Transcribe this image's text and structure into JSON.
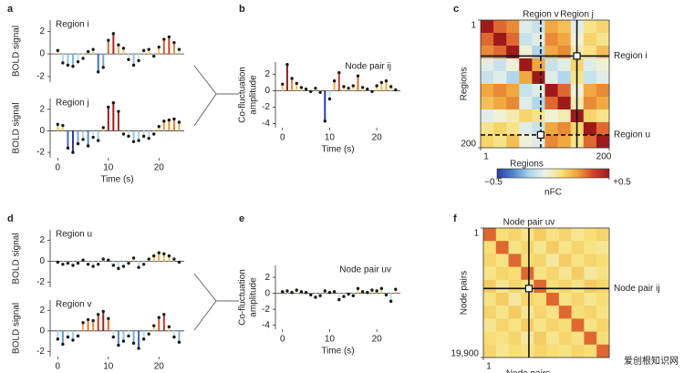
{
  "watermark": "爱创根知识网",
  "colormap": [
    "#2a3d9c",
    "#4f86cc",
    "#a9d4ec",
    "#eef2e6",
    "#f8e27a",
    "#f0a23a",
    "#d4422a",
    "#9e1a1a"
  ],
  "chart_data": [
    {
      "type": "stem",
      "label": "a",
      "title": "Region i",
      "ylabel": [
        "BOLD signal"
      ],
      "x": [
        0,
        1,
        2,
        3,
        4,
        5,
        6,
        7,
        8,
        9,
        10,
        11,
        12,
        13,
        14,
        15,
        16,
        17,
        18,
        19,
        20,
        21,
        22,
        23,
        24
      ],
      "values": [
        0.3,
        -0.8,
        -1.0,
        -1.1,
        -0.7,
        -0.4,
        0.2,
        0.4,
        -1.6,
        -1.2,
        1.2,
        1.8,
        0.8,
        0.5,
        -0.5,
        -1.0,
        -0.6,
        0.3,
        0.4,
        -0.2,
        0.6,
        1.3,
        1.5,
        1.0,
        0.4
      ],
      "xlim": [
        -1.5,
        25
      ],
      "ylim": [
        -2.5,
        3
      ],
      "yticks": [
        -2,
        0,
        2
      ],
      "clim": [
        -2,
        2
      ]
    },
    {
      "type": "stem",
      "title": "Region j",
      "ylabel": [
        "BOLD signal"
      ],
      "xlabel": "Time (s)",
      "x": [
        0,
        1,
        2,
        3,
        4,
        5,
        6,
        7,
        8,
        9,
        10,
        11,
        12,
        13,
        14,
        15,
        16,
        17,
        18,
        19,
        20,
        21,
        22,
        23,
        24
      ],
      "values": [
        0.6,
        0.5,
        -1.6,
        -2.0,
        -1.2,
        -0.8,
        -1.4,
        -0.6,
        -0.9,
        0.3,
        2.2,
        2.6,
        1.8,
        -0.3,
        -0.5,
        -1.0,
        -0.9,
        -0.5,
        -0.7,
        -0.3,
        0.4,
        0.9,
        1.0,
        1.1,
        0.8
      ],
      "xlim": [
        -1.5,
        25
      ],
      "ylim": [
        -2.5,
        3
      ],
      "xticks": [
        0,
        10,
        20
      ],
      "yticks": [
        -2,
        0,
        2
      ],
      "clim": [
        -2,
        2
      ]
    },
    {
      "type": "stem",
      "label": "b",
      "title": "Node pair ij",
      "ylabel": [
        "Co-fluctuation",
        "amplitude"
      ],
      "xlabel": "Time (s)",
      "x": [
        0,
        1,
        2,
        3,
        4,
        5,
        6,
        7,
        8,
        9,
        10,
        11,
        12,
        13,
        14,
        15,
        16,
        17,
        18,
        19,
        20,
        21,
        22,
        23,
        24
      ],
      "values": [
        0.8,
        3.2,
        1.5,
        0.9,
        0.4,
        0.2,
        -0.1,
        0.3,
        -0.2,
        -3.7,
        -1.0,
        1.2,
        2.2,
        0.5,
        0.3,
        0.6,
        1.8,
        0.4,
        0.2,
        -0.1,
        0.6,
        1.0,
        1.2,
        0.5,
        0.1
      ],
      "xlim": [
        -1.5,
        25
      ],
      "ylim": [
        -4.5,
        3.5
      ],
      "xticks": [
        0,
        10,
        20
      ],
      "yticks": [
        -4,
        -2,
        0,
        2
      ],
      "clim": [
        -3,
        3
      ]
    },
    {
      "type": "heatmap",
      "label": "c",
      "xlabel": "Regions",
      "ylabel": "Regions",
      "xlim": [
        1,
        200
      ],
      "ylim": [
        1,
        200
      ],
      "xticks": [
        1,
        200
      ],
      "yticks": [
        1,
        200
      ],
      "clim": [
        -0.5,
        0.5
      ],
      "matrix": [
        [
          0.5,
          0.3,
          0.25,
          -0.1,
          -0.15,
          0.2,
          0.15,
          -0.1,
          0.05,
          0.1
        ],
        [
          0.3,
          0.5,
          0.3,
          -0.15,
          -0.1,
          0.25,
          0.2,
          -0.05,
          0.1,
          0.05
        ],
        [
          0.25,
          0.3,
          0.5,
          -0.05,
          -0.2,
          0.2,
          0.25,
          0.0,
          0.05,
          0.15
        ],
        [
          -0.1,
          -0.15,
          -0.05,
          0.5,
          0.2,
          -0.15,
          -0.1,
          0.1,
          -0.1,
          -0.05
        ],
        [
          -0.15,
          -0.1,
          -0.2,
          0.2,
          0.5,
          -0.1,
          -0.2,
          0.05,
          -0.15,
          -0.1
        ],
        [
          0.2,
          0.25,
          0.2,
          -0.15,
          -0.1,
          0.5,
          0.3,
          -0.05,
          0.2,
          0.25
        ],
        [
          0.15,
          0.2,
          0.25,
          -0.1,
          -0.2,
          0.3,
          0.5,
          0.0,
          0.25,
          0.2
        ],
        [
          -0.1,
          -0.05,
          0.0,
          0.1,
          0.05,
          -0.05,
          0.0,
          0.5,
          0.1,
          0.05
        ],
        [
          0.05,
          0.1,
          0.05,
          -0.1,
          -0.15,
          0.2,
          0.25,
          0.1,
          0.5,
          0.3
        ],
        [
          0.1,
          0.05,
          0.15,
          -0.05,
          -0.1,
          0.25,
          0.2,
          0.05,
          0.3,
          0.5
        ]
      ],
      "highlights": [
        {
          "label": "Region i",
          "axis": "y",
          "value": 57,
          "style": "solid"
        },
        {
          "label": "Region j",
          "axis": "x",
          "value": 150,
          "style": "solid"
        },
        {
          "label": "Region v",
          "axis": "x",
          "value": 94,
          "style": "dashed"
        },
        {
          "label": "Region u",
          "axis": "y",
          "value": 180,
          "style": "dashed"
        }
      ],
      "colorbar": {
        "label": "nFC",
        "ticks": [
          {
            "value": -0.5,
            "label": "−0.5"
          },
          {
            "value": 0.5,
            "label": "+0.5"
          }
        ]
      }
    },
    {
      "type": "stem",
      "label": "d",
      "title": "Region u",
      "ylabel": [
        "BOLD signal"
      ],
      "x": [
        0,
        1,
        2,
        3,
        4,
        5,
        6,
        7,
        8,
        9,
        10,
        11,
        12,
        13,
        14,
        15,
        16,
        17,
        18,
        19,
        20,
        21,
        22,
        23,
        24
      ],
      "values": [
        -0.1,
        -0.3,
        -0.2,
        -0.4,
        -0.2,
        0.1,
        -0.3,
        -0.5,
        -0.3,
        0.2,
        0.1,
        -0.4,
        -0.7,
        -0.5,
        -0.2,
        0.3,
        -0.6,
        -0.3,
        0.2,
        0.5,
        0.8,
        0.7,
        0.5,
        0.2,
        -0.1
      ],
      "xlim": [
        -1.5,
        25
      ],
      "ylim": [
        -2.5,
        3
      ],
      "yticks": [
        -2,
        0,
        2
      ],
      "clim": [
        -2,
        2
      ]
    },
    {
      "type": "stem",
      "title": "Region v",
      "ylabel": [
        "BOLD signal"
      ],
      "x": [
        0,
        1,
        2,
        3,
        4,
        5,
        6,
        7,
        8,
        9,
        10,
        11,
        12,
        13,
        14,
        15,
        16,
        17,
        18,
        19,
        20,
        21,
        22,
        23,
        24
      ],
      "values": [
        -0.8,
        -1.3,
        -0.6,
        -0.9,
        -0.5,
        0.8,
        1.1,
        1.0,
        1.6,
        1.9,
        1.2,
        -0.6,
        -1.4,
        -1.0,
        -0.5,
        -1.2,
        -1.7,
        -0.8,
        -0.3,
        0.5,
        1.3,
        1.6,
        0.4,
        -0.6,
        -1.1
      ],
      "xlim": [
        -1.5,
        25
      ],
      "ylim": [
        -2.5,
        3
      ],
      "xticks": [
        0,
        10,
        20
      ],
      "yticks": [
        -2,
        0,
        2
      ],
      "clim": [
        -2,
        2
      ]
    },
    {
      "type": "stem",
      "label": "e",
      "title": "Node pair uv",
      "ylabel": [
        "Co-fluctuation",
        "amplitude"
      ],
      "xlabel": "Time (s)",
      "x": [
        0,
        1,
        2,
        3,
        4,
        5,
        6,
        7,
        8,
        9,
        10,
        11,
        12,
        13,
        14,
        15,
        16,
        17,
        18,
        19,
        20,
        21,
        22,
        23,
        24
      ],
      "values": [
        0.2,
        0.3,
        0.1,
        0.4,
        0.2,
        0.1,
        -0.2,
        -0.5,
        -0.3,
        0.3,
        0.1,
        0.2,
        -0.8,
        -0.4,
        -0.1,
        -0.3,
        0.6,
        0.2,
        0.1,
        0.4,
        0.3,
        0.6,
        -0.2,
        -1.0,
        0.5
      ],
      "xlim": [
        -1.5,
        25
      ],
      "ylim": [
        -4.5,
        3.5
      ],
      "xticks": [
        0,
        10,
        20
      ],
      "yticks": [
        -4,
        -2,
        0,
        2
      ],
      "clim": [
        -3,
        3
      ]
    },
    {
      "type": "heatmap",
      "label": "f",
      "xlabel": "Node pairs",
      "ylabel": "Node pairs",
      "xlim": [
        1,
        19900
      ],
      "ylim": [
        1,
        19900
      ],
      "xticks": [
        1
      ],
      "yticks": [
        1,
        {
          "value": 19900,
          "label": "19,900"
        }
      ],
      "clim": [
        -0.5,
        0.5
      ],
      "matrix": [
        [
          0.3,
          0.08,
          0.1,
          0.05,
          0.12,
          0.06,
          0.1,
          0.04,
          0.08,
          0.1
        ],
        [
          0.08,
          0.3,
          0.06,
          0.1,
          0.04,
          0.12,
          0.05,
          0.1,
          0.06,
          0.04
        ],
        [
          0.1,
          0.06,
          0.3,
          0.08,
          0.1,
          0.02,
          0.12,
          0.06,
          0.1,
          0.08
        ],
        [
          0.05,
          0.1,
          0.08,
          0.3,
          0.06,
          0.1,
          0.04,
          0.12,
          0.02,
          0.06
        ],
        [
          0.12,
          0.04,
          0.1,
          0.06,
          0.3,
          0.08,
          0.1,
          0.05,
          0.12,
          0.1
        ],
        [
          0.06,
          0.12,
          0.02,
          0.1,
          0.08,
          0.3,
          0.06,
          0.1,
          0.04,
          0.08
        ],
        [
          0.1,
          0.05,
          0.12,
          0.04,
          0.1,
          0.06,
          0.3,
          0.08,
          0.1,
          0.06
        ],
        [
          0.04,
          0.1,
          0.06,
          0.12,
          0.05,
          0.1,
          0.08,
          0.3,
          0.06,
          0.1
        ],
        [
          0.08,
          0.06,
          0.1,
          0.02,
          0.12,
          0.04,
          0.1,
          0.06,
          0.3,
          0.08
        ],
        [
          0.1,
          0.04,
          0.08,
          0.06,
          0.1,
          0.08,
          0.06,
          0.1,
          0.08,
          0.3
        ]
      ],
      "highlights": [
        {
          "label": "Node pair uv",
          "axis": "x",
          "value": 7200,
          "style": "solid"
        },
        {
          "label": "Node pair ij",
          "axis": "y",
          "value": 9300,
          "style": "solid"
        }
      ]
    }
  ]
}
